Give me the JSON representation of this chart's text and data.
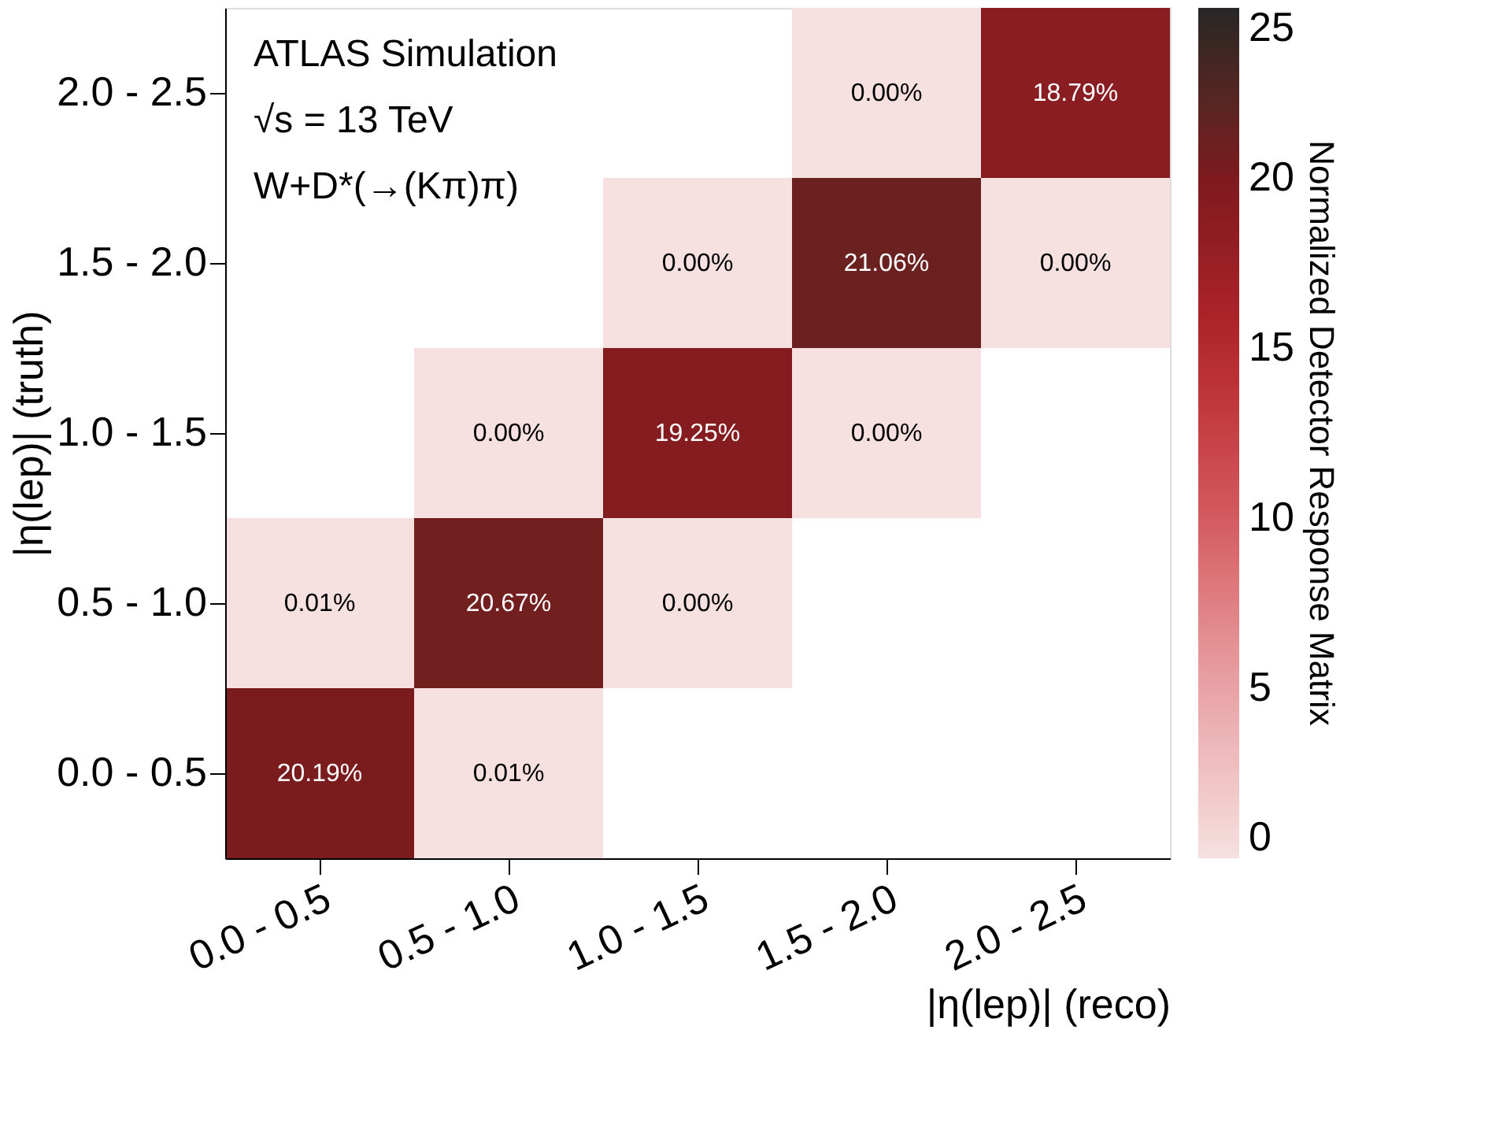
{
  "chart_data": {
    "type": "heatmap",
    "xlabel": "|η(lep)| (reco)",
    "ylabel": "|η(lep)| (truth)",
    "clabel": "Normalized Detector Response Matrix",
    "categories": [
      "0.0 - 0.5",
      "0.5 - 1.0",
      "1.0 - 1.5",
      "1.5 - 2.0",
      "2.0 - 2.5"
    ],
    "y_categories": [
      "2.0 - 2.5",
      "1.5 - 2.0",
      "1.0 - 1.5",
      "0.5 - 1.0",
      "0.0 - 0.5"
    ],
    "cells": [
      [
        null,
        null,
        null,
        0.0,
        18.79
      ],
      [
        null,
        null,
        0.0,
        21.06,
        0.0
      ],
      [
        null,
        0.0,
        19.25,
        0.0,
        null
      ],
      [
        0.01,
        20.67,
        0.0,
        null,
        null
      ],
      [
        20.19,
        0.01,
        null,
        null,
        null
      ]
    ],
    "cell_labels": [
      [
        null,
        null,
        null,
        "0.00%",
        "18.79%"
      ],
      [
        null,
        null,
        "0.00%",
        "21.06%",
        "0.00%"
      ],
      [
        null,
        "0.00%",
        "19.25%",
        "0.00%",
        null
      ],
      [
        "0.01%",
        "20.67%",
        "0.00%",
        null,
        null
      ],
      [
        "20.19%",
        "0.01%",
        null,
        null,
        null
      ]
    ],
    "clim": [
      0,
      25
    ],
    "cticks": [
      0,
      5,
      10,
      15,
      20,
      25
    ],
    "annotations": [
      "ATLAS Simulation",
      "√s = 13 TeV",
      "W+D*(→(Kπ)π)"
    ]
  }
}
